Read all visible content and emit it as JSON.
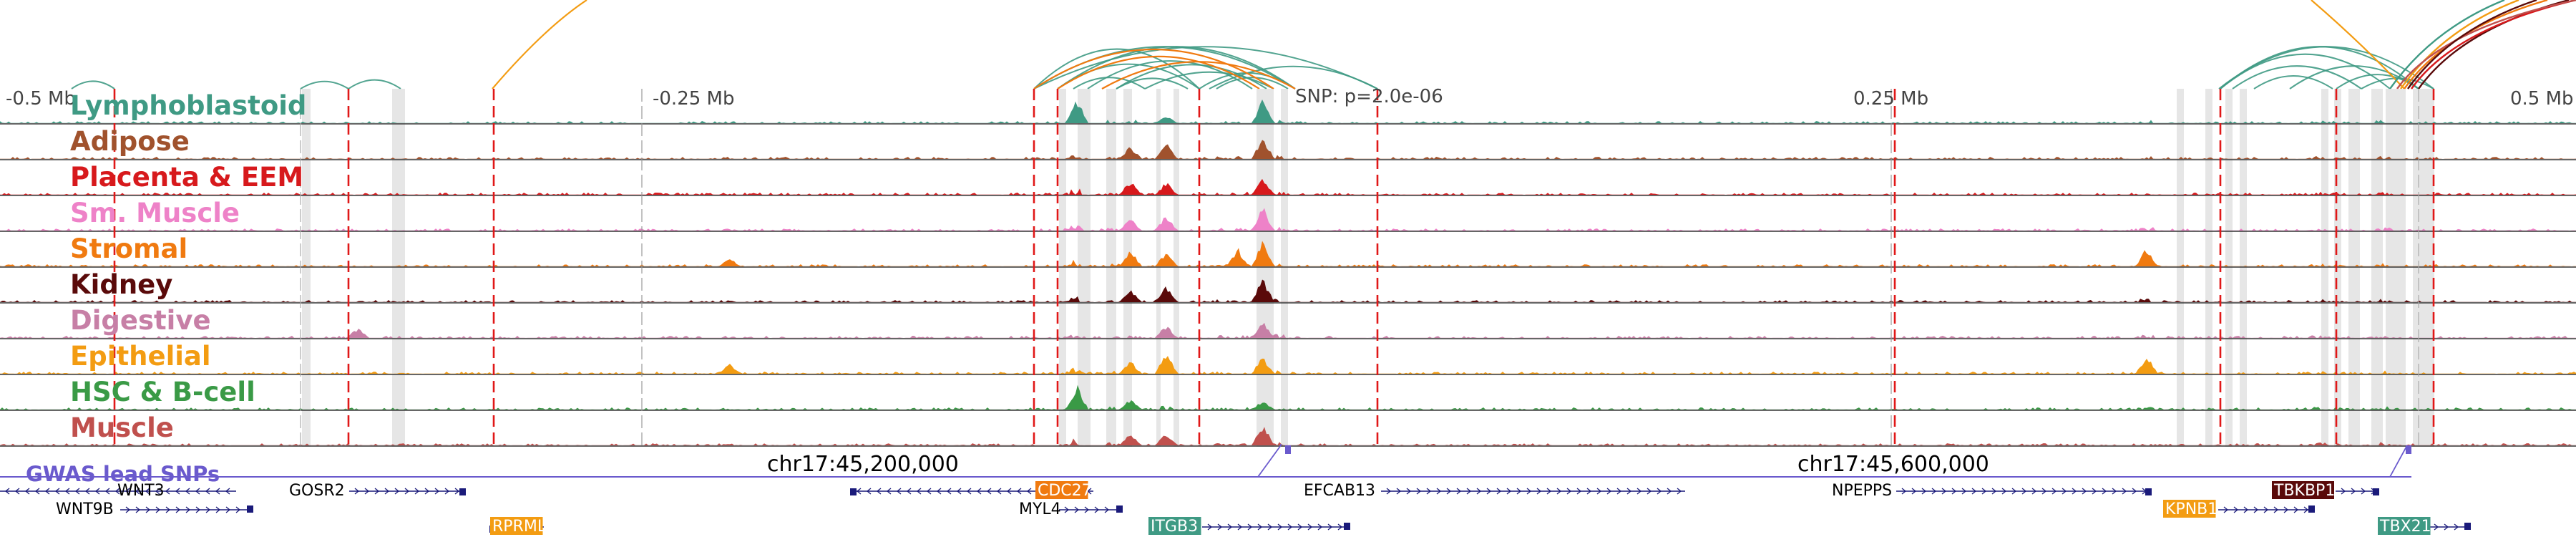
{
  "locus": {
    "scale_labels": [
      "-0.5 Mb",
      "-0.25 Mb",
      "0.25 Mb",
      "0.5 Mb"
    ],
    "snp_label": "SNP: p=2.0e-06",
    "coordinates": [
      "chr17:45,200,000",
      "chr17:45,600,000"
    ]
  },
  "tracks": [
    {
      "name": "Lymphoblastoid",
      "color": "#3f9a84"
    },
    {
      "name": "Adipose",
      "color": "#a0522d"
    },
    {
      "name": "Placenta & EEM",
      "color": "#d7191c"
    },
    {
      "name": "Sm. Muscle",
      "color": "#ee82c8"
    },
    {
      "name": "Stromal",
      "color": "#f07a10"
    },
    {
      "name": "Kidney",
      "color": "#5a0a0a"
    },
    {
      "name": "Digestive",
      "color": "#c77fa6"
    },
    {
      "name": "Epithelial",
      "color": "#f39c12"
    },
    {
      "name": "HSC & B-cell",
      "color": "#3a9a46"
    },
    {
      "name": "Muscle",
      "color": "#c0504d"
    }
  ],
  "gwas": {
    "label": "GWAS lead SNPs",
    "color": "#6a5acd"
  },
  "genes": [
    {
      "name": "WNT3",
      "strand": "-",
      "highlight": null
    },
    {
      "name": "WNT9B",
      "strand": "+",
      "highlight": null
    },
    {
      "name": "GOSR2",
      "strand": "+",
      "highlight": null
    },
    {
      "name": "RPRML",
      "strand": "-",
      "highlight": "#f39c12"
    },
    {
      "name": "CDC27",
      "strand": "-",
      "highlight": "#f07a10"
    },
    {
      "name": "MYL4",
      "strand": "+",
      "highlight": null
    },
    {
      "name": "ITGB3",
      "strand": "+",
      "highlight": "#3f9a84"
    },
    {
      "name": "EFCAB13",
      "strand": "+",
      "highlight": null
    },
    {
      "name": "NPEPPS",
      "strand": "+",
      "highlight": null
    },
    {
      "name": "KPNB1",
      "strand": "+",
      "highlight": "#f39c12"
    },
    {
      "name": "TBKBP1",
      "strand": "+",
      "highlight": "#5a0a0a"
    },
    {
      "name": "TBX21",
      "strand": "+",
      "highlight": "#3f9a84"
    }
  ]
}
